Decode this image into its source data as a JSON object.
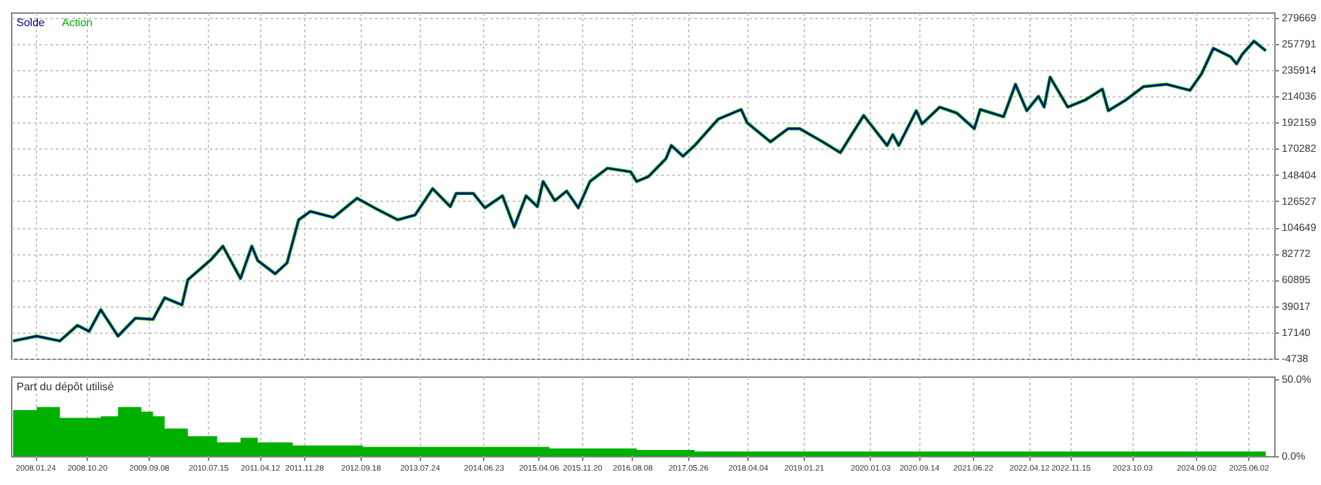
{
  "chart_data": [
    {
      "type": "line",
      "legend": "top left",
      "grid": true,
      "tick_labels": "y",
      "x": [
        "2007-10",
        "2008-02",
        "2008-06",
        "2008-09",
        "2008-11",
        "2009-01",
        "2009-04",
        "2009-07",
        "2009-10",
        "2009-12",
        "2010-03",
        "2010-04",
        "2010-08",
        "2010-10",
        "2011-01",
        "2011-03",
        "2011-04",
        "2011-07",
        "2011-09",
        "2011-11",
        "2012-01",
        "2012-05",
        "2012-09",
        "2012-12",
        "2013-04",
        "2013-07",
        "2013-10",
        "2014-01",
        "2014-02",
        "2014-05",
        "2014-07",
        "2014-10",
        "2014-12",
        "2015-02",
        "2015-04",
        "2015-05",
        "2015-07",
        "2015-09",
        "2015-11",
        "2016-01",
        "2016-04",
        "2016-08",
        "2016-09",
        "2016-11",
        "2017-02",
        "2017-03",
        "2017-05",
        "2017-07",
        "2017-11",
        "2018-03",
        "2018-04",
        "2018-08",
        "2018-11",
        "2019-01",
        "2019-05",
        "2019-08",
        "2019-12",
        "2020-04",
        "2020-05",
        "2020-06",
        "2020-09",
        "2020-10",
        "2021-01",
        "2021-04",
        "2021-07",
        "2021-08",
        "2021-12",
        "2022-02",
        "2022-04",
        "2022-06",
        "2022-07",
        "2022-08",
        "2022-11",
        "2023-02",
        "2023-05",
        "2023-06",
        "2023-09",
        "2023-12",
        "2024-04",
        "2024-08",
        "2024-10",
        "2024-12",
        "2025-03",
        "2025-04",
        "2025-05",
        "2025-07",
        "2025-09"
      ],
      "series": [
        {
          "name": "Solde",
          "color": "#00008b",
          "values": [
            10000,
            14000,
            10000,
            23000,
            18000,
            36000,
            14000,
            29000,
            28000,
            46000,
            40000,
            61000,
            78000,
            89000,
            62000,
            89000,
            77000,
            66000,
            75000,
            111000,
            118000,
            113000,
            129000,
            121000,
            111000,
            115000,
            137000,
            122000,
            133000,
            133000,
            121000,
            131000,
            105000,
            131000,
            122000,
            143000,
            127000,
            135000,
            121000,
            143000,
            154000,
            151000,
            143000,
            147000,
            162000,
            173000,
            164000,
            173000,
            195000,
            203000,
            192000,
            176000,
            187000,
            187000,
            176000,
            167000,
            198000,
            173000,
            182000,
            173000,
            202000,
            191000,
            205000,
            200000,
            187000,
            203000,
            197000,
            224000,
            202000,
            214000,
            205000,
            230000,
            205000,
            211000,
            220000,
            202000,
            211000,
            222000,
            224000,
            219000,
            233000,
            254000,
            247000,
            241000,
            249000,
            260000,
            252000
          ]
        },
        {
          "name": "Action",
          "color": "#00b000",
          "values": [
            10000,
            14000,
            10000,
            23000,
            18000,
            36000,
            14000,
            29000,
            28000,
            46000,
            40000,
            61000,
            78000,
            89000,
            62000,
            89000,
            77000,
            66000,
            75000,
            111000,
            118000,
            113000,
            129000,
            121000,
            111000,
            115000,
            137000,
            122000,
            133000,
            133000,
            121000,
            131000,
            105000,
            131000,
            122000,
            143000,
            127000,
            135000,
            121000,
            143000,
            154000,
            151000,
            143000,
            147000,
            162000,
            173000,
            164000,
            173000,
            195000,
            203000,
            192000,
            176000,
            187000,
            187000,
            176000,
            167000,
            198000,
            173000,
            182000,
            173000,
            202000,
            191000,
            205000,
            200000,
            187000,
            203000,
            197000,
            224000,
            202000,
            214000,
            205000,
            230000,
            205000,
            211000,
            220000,
            202000,
            211000,
            222000,
            224000,
            219000,
            233000,
            254000,
            247000,
            241000,
            249000,
            260000,
            252000
          ]
        }
      ],
      "xlim": [
        "2007-09-20",
        "2025-10-15"
      ],
      "xticks": [
        {
          "value": "2008-01-24",
          "label": null
        },
        {
          "value": "2008-10-20",
          "label": null
        },
        {
          "value": "2009-09-08",
          "label": null
        },
        {
          "value": "2010-07-15",
          "label": null
        },
        {
          "value": "2011-04-12",
          "label": null
        },
        {
          "value": "2011-11-28",
          "label": null
        },
        {
          "value": "2012-09-18",
          "label": null
        },
        {
          "value": "2013-07-24",
          "label": null
        },
        {
          "value": "2014-06-23",
          "label": null
        },
        {
          "value": "2015-04-06",
          "label": null
        },
        {
          "value": "2015-11-20",
          "label": null
        },
        {
          "value": "2016-08-08",
          "label": null
        },
        {
          "value": "2017-05-26",
          "label": null
        },
        {
          "value": "2018-04-04",
          "label": null
        },
        {
          "value": "2019-01-21",
          "label": null
        },
        {
          "value": "2020-01-03",
          "label": null
        },
        {
          "value": "2020-09-14",
          "label": null
        },
        {
          "value": "2021-06-22",
          "label": null
        },
        {
          "value": "2022-04-12",
          "label": null
        },
        {
          "value": "2022-11-15",
          "label": null
        },
        {
          "value": "2023-10-03",
          "label": null
        },
        {
          "value": "2024-09-02",
          "label": null
        },
        {
          "value": "2025-06-02",
          "label": null
        }
      ],
      "ylim": [
        -4738,
        284000
      ],
      "yticks": [
        -4738,
        17140,
        39017,
        60895,
        82772,
        104649,
        126527,
        148404,
        170282,
        192159,
        214036,
        235914,
        257791,
        279669
      ]
    },
    {
      "type": "area",
      "legend": "top left",
      "grid": "x",
      "x": [
        "2007-10",
        "2008-02",
        "2008-06",
        "2009-01",
        "2009-04",
        "2009-08",
        "2009-10",
        "2009-12",
        "2010-04",
        "2010-09",
        "2011-01",
        "2011-04",
        "2011-08",
        "2011-10",
        "2012-10",
        "2014-03",
        "2015-06",
        "2016-09",
        "2017-07",
        "2020-11",
        "2023-05",
        "2025-09"
      ],
      "series": [
        {
          "name": "Part du dépôt utilisé",
          "color": "#00b000",
          "values": [
            30,
            32,
            25,
            26,
            32,
            29,
            26,
            18,
            13,
            9,
            12,
            9,
            9,
            7,
            6,
            6,
            5,
            4,
            3,
            3,
            3,
            3
          ]
        }
      ],
      "xlim": [
        "2007-09-20",
        "2025-10-15"
      ],
      "xticks": [
        {
          "value": "2008-01-24",
          "label": "2008.01.24"
        },
        {
          "value": "2008-10-20",
          "label": "2008.10.20"
        },
        {
          "value": "2009-09-08",
          "label": "2009.09.08"
        },
        {
          "value": "2010-07-15",
          "label": "2010.07.15"
        },
        {
          "value": "2011-04-12",
          "label": "2011.04.12"
        },
        {
          "value": "2011-11-28",
          "label": "2011.11.28"
        },
        {
          "value": "2012-09-18",
          "label": "2012.09.18"
        },
        {
          "value": "2013-07-24",
          "label": "2013.07.24"
        },
        {
          "value": "2014-06-23",
          "label": "2014.06.23"
        },
        {
          "value": "2015-04-06",
          "label": "2015.04.06"
        },
        {
          "value": "2015-11-20",
          "label": "2015.11.20"
        },
        {
          "value": "2016-08-08",
          "label": "2016.08.08"
        },
        {
          "value": "2017-05-26",
          "label": "2017.05.26"
        },
        {
          "value": "2018-04-04",
          "label": "2018.04.04"
        },
        {
          "value": "2019-01-21",
          "label": "2019.01.21"
        },
        {
          "value": "2020-01-03",
          "label": "2020.01.03"
        },
        {
          "value": "2020-09-14",
          "label": "2020.09.14"
        },
        {
          "value": "2021-06-22",
          "label": "2021.06.22"
        },
        {
          "value": "2022-04-12",
          "label": "2022.04.12"
        },
        {
          "value": "2022-11-15",
          "label": "2022.11.15"
        },
        {
          "value": "2023-10-03",
          "label": "2023.10.03"
        },
        {
          "value": "2024-09-02",
          "label": "2024.09.02"
        },
        {
          "value": "2025-06-02",
          "label": "2025.06.02"
        }
      ],
      "ylim": [
        0,
        52
      ],
      "yticks": [
        {
          "value": 0,
          "label": "0.0%"
        },
        {
          "value": 50,
          "label": "50.0%"
        }
      ]
    }
  ]
}
